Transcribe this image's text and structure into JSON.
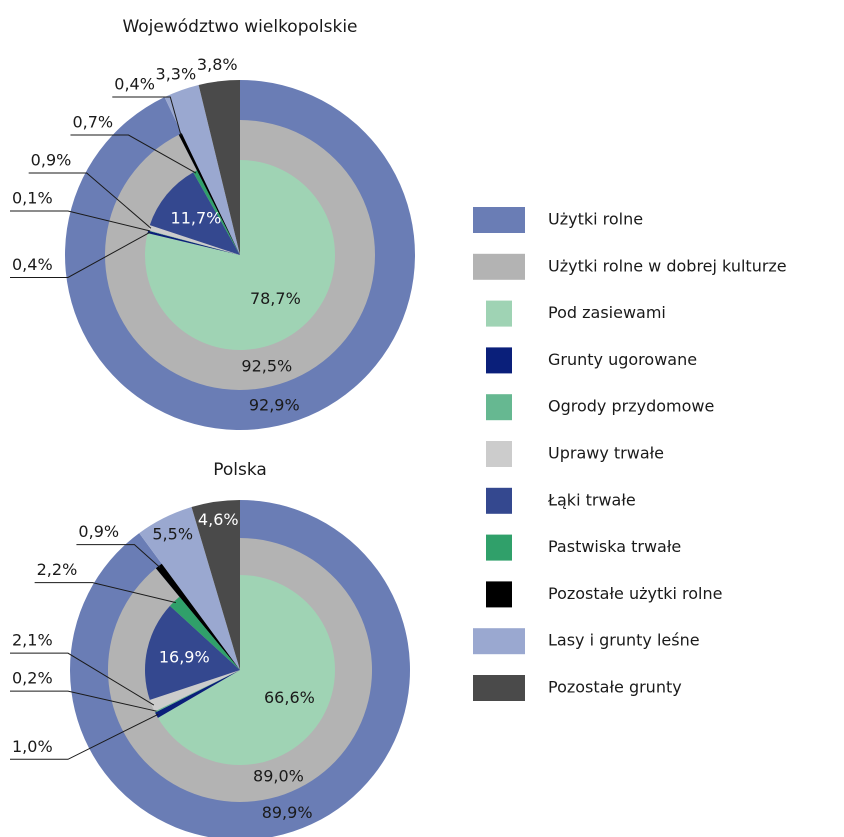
{
  "legend": [
    {
      "name": "Użytki rolne",
      "color": "#6a7db5"
    },
    {
      "name": "Użytki rolne w dobrej kulturze",
      "color": "#b3b3b3"
    },
    {
      "name": "Pod zasiewami",
      "color": "#9fd3b4"
    },
    {
      "name": "Grunty ugorowane",
      "color": "#0a1f7a"
    },
    {
      "name": "Ogrody przydomowe",
      "color": "#66b891"
    },
    {
      "name": "Uprawy trwałe",
      "color": "#cccccc"
    },
    {
      "name": "Łąki trwałe",
      "color": "#34488f"
    },
    {
      "name": "Pastwiska trwałe",
      "color": "#30a06a"
    },
    {
      "name": "Pozostałe użytki rolne",
      "color": "#000000"
    },
    {
      "name": "Lasy i grunty leśne",
      "color": "#9aa8d0"
    },
    {
      "name": "Pozostałe grunty",
      "color": "#4a4a4a"
    }
  ],
  "chart_data": [
    {
      "type": "pie",
      "title": "Województwo wielkopolskie",
      "rings": [
        {
          "names": [
            "Użytki rolne",
            "Lasy i grunty leśne",
            "Pozostałe grunty"
          ],
          "values": [
            92.9,
            3.3,
            3.8
          ],
          "value_labels": [
            "92,9%",
            "3,3%",
            "3,8%"
          ]
        },
        {
          "names": [
            "Użytki rolne w dobrej kulturze",
            "Pozostałe użytki rolne"
          ],
          "values": [
            92.5,
            0.4
          ],
          "value_labels": [
            "92,5%",
            "0,4%"
          ]
        },
        {
          "names": [
            "Pod zasiewami",
            "Grunty ugorowane",
            "Ogrody przydomowe",
            "Uprawy trwałe",
            "Łąki trwałe",
            "Pastwiska trwałe"
          ],
          "values": [
            78.7,
            0.4,
            0.1,
            0.9,
            11.7,
            0.7
          ],
          "value_labels": [
            "78,7%",
            "0,4%",
            "0,1%",
            "0,9%",
            "11,7%",
            "0,7%"
          ]
        }
      ]
    },
    {
      "type": "pie",
      "title": "Polska",
      "rings": [
        {
          "names": [
            "Użytki rolne",
            "Lasy i grunty leśne",
            "Pozostałe grunty"
          ],
          "values": [
            89.9,
            5.5,
            4.6
          ],
          "value_labels": [
            "89,9%",
            "5,5%",
            "4,6%"
          ]
        },
        {
          "names": [
            "Użytki rolne w dobrej kulturze",
            "Pozostałe użytki rolne"
          ],
          "values": [
            89.0,
            0.9
          ],
          "value_labels": [
            "89,0%",
            "0,9%"
          ]
        },
        {
          "names": [
            "Pod zasiewami",
            "Grunty ugorowane",
            "Ogrody przydomowe",
            "Uprawy trwałe",
            "Łąki trwałe",
            "Pastwiska trwałe"
          ],
          "values": [
            66.6,
            1.0,
            0.2,
            2.1,
            16.9,
            2.2
          ],
          "value_labels": [
            "66,6%",
            "1,0%",
            "0,2%",
            "2,1%",
            "16,9%",
            "2,2%"
          ]
        }
      ]
    }
  ]
}
